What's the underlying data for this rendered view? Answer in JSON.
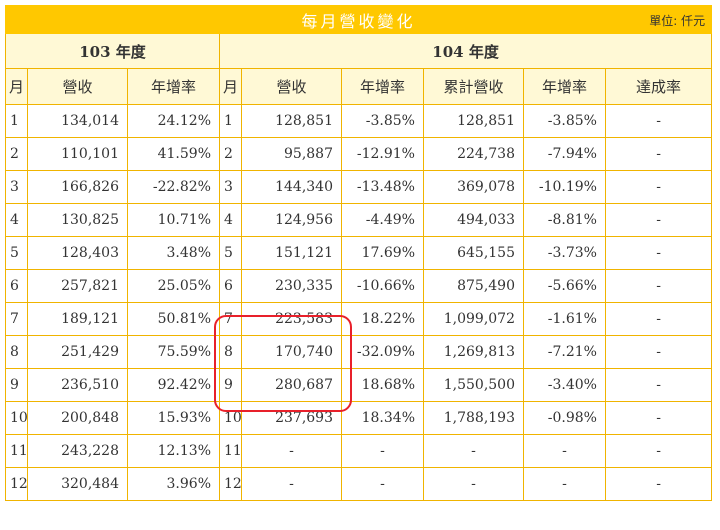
{
  "title": "每月營收變化",
  "unit": "單位: 仟元",
  "groups": {
    "y103": "103 年度",
    "y104": "104 年度"
  },
  "headers": {
    "month": "月",
    "revenue": "營收",
    "growth": "年增率",
    "month2": "月",
    "revenue2": "營收",
    "growth2": "年增率",
    "cumulative": "累計營收",
    "cum_growth": "年增率",
    "achievement": "達成率"
  },
  "rows": [
    {
      "m103": "1",
      "rev103": "134,014",
      "g103": "24.12%",
      "m104": "1",
      "rev104": "128,851",
      "g104": "-3.85%",
      "cum": "128,851",
      "cumg": "-3.85%",
      "ach": "-"
    },
    {
      "m103": "2",
      "rev103": "110,101",
      "g103": "41.59%",
      "m104": "2",
      "rev104": "95,887",
      "g104": "-12.91%",
      "cum": "224,738",
      "cumg": "-7.94%",
      "ach": "-"
    },
    {
      "m103": "3",
      "rev103": "166,826",
      "g103": "-22.82%",
      "m104": "3",
      "rev104": "144,340",
      "g104": "-13.48%",
      "cum": "369,078",
      "cumg": "-10.19%",
      "ach": "-"
    },
    {
      "m103": "4",
      "rev103": "130,825",
      "g103": "10.71%",
      "m104": "4",
      "rev104": "124,956",
      "g104": "-4.49%",
      "cum": "494,033",
      "cumg": "-8.81%",
      "ach": "-"
    },
    {
      "m103": "5",
      "rev103": "128,403",
      "g103": "3.48%",
      "m104": "5",
      "rev104": "151,121",
      "g104": "17.69%",
      "cum": "645,155",
      "cumg": "-3.73%",
      "ach": "-"
    },
    {
      "m103": "6",
      "rev103": "257,821",
      "g103": "25.05%",
      "m104": "6",
      "rev104": "230,335",
      "g104": "-10.66%",
      "cum": "875,490",
      "cumg": "-5.66%",
      "ach": "-"
    },
    {
      "m103": "7",
      "rev103": "189,121",
      "g103": "50.81%",
      "m104": "7",
      "rev104": "223,583",
      "g104": "18.22%",
      "cum": "1,099,072",
      "cumg": "-1.61%",
      "ach": "-"
    },
    {
      "m103": "8",
      "rev103": "251,429",
      "g103": "75.59%",
      "m104": "8",
      "rev104": "170,740",
      "g104": "-32.09%",
      "cum": "1,269,813",
      "cumg": "-7.21%",
      "ach": "-"
    },
    {
      "m103": "9",
      "rev103": "236,510",
      "g103": "92.42%",
      "m104": "9",
      "rev104": "280,687",
      "g104": "18.68%",
      "cum": "1,550,500",
      "cumg": "-3.40%",
      "ach": "-"
    },
    {
      "m103": "10",
      "rev103": "200,848",
      "g103": "15.93%",
      "m104": "10",
      "rev104": "237,693",
      "g104": "18.34%",
      "cum": "1,788,193",
      "cumg": "-0.98%",
      "ach": "-"
    },
    {
      "m103": "11",
      "rev103": "243,228",
      "g103": "12.13%",
      "m104": "11",
      "rev104": "-",
      "g104": "-",
      "cum": "-",
      "cumg": "-",
      "ach": "-"
    },
    {
      "m103": "12",
      "rev103": "320,484",
      "g103": "3.96%",
      "m104": "12",
      "rev104": "-",
      "g104": "-",
      "cum": "-",
      "cumg": "-",
      "ach": "-"
    }
  ],
  "highlight_color": "#e8202a",
  "accent_color": "#ffc800"
}
